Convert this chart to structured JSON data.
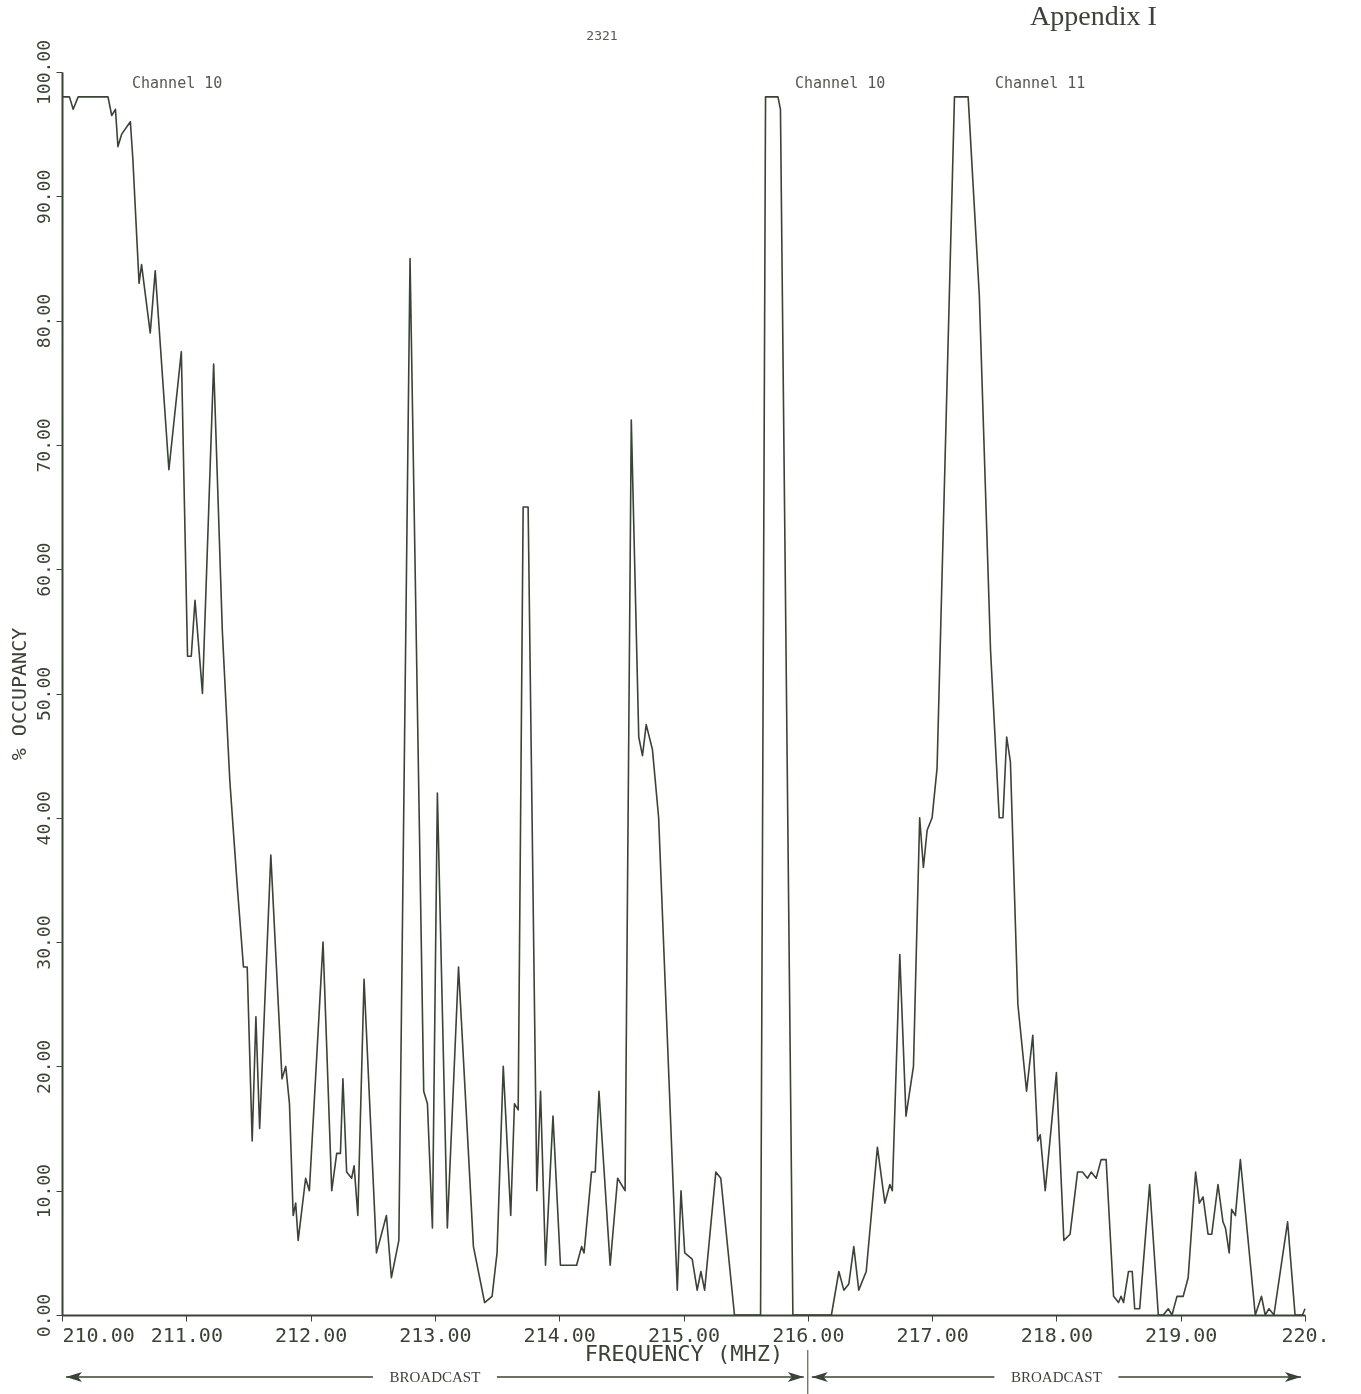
{
  "chart_data": {
    "type": "line",
    "title": "Appendix I",
    "xlabel": "FREQUENCY (MHZ)",
    "ylabel": "% OCCUPANCY",
    "color": "#3b4236",
    "line_style": "solid",
    "grid": false,
    "x": [
      210.0,
      210.06,
      210.09,
      210.13,
      210.37,
      210.4,
      210.43,
      210.45,
      210.48,
      210.55,
      210.57,
      210.62,
      210.64,
      210.71,
      210.75,
      210.86,
      210.96,
      211.01,
      211.04,
      211.07,
      211.13,
      211.22,
      211.29,
      211.35,
      211.41,
      211.46,
      211.49,
      211.53,
      211.56,
      211.59,
      211.68,
      211.77,
      211.8,
      211.83,
      211.86,
      211.88,
      211.9,
      211.96,
      211.99,
      212.1,
      212.17,
      212.21,
      212.24,
      212.26,
      212.29,
      212.33,
      212.35,
      212.38,
      212.43,
      212.53,
      212.61,
      212.65,
      212.71,
      212.8,
      212.91,
      212.94,
      212.98,
      213.02,
      213.1,
      213.19,
      213.31,
      213.4,
      213.46,
      213.5,
      213.55,
      213.61,
      213.64,
      213.67,
      213.71,
      213.75,
      213.82,
      213.85,
      213.89,
      213.95,
      214.01,
      214.14,
      214.18,
      214.2,
      214.26,
      214.29,
      214.32,
      214.41,
      214.47,
      214.53,
      214.58,
      214.64,
      214.67,
      214.7,
      214.75,
      214.8,
      214.95,
      214.98,
      215.01,
      215.07,
      215.11,
      215.14,
      215.17,
      215.26,
      215.3,
      215.41,
      215.62,
      215.66,
      215.76,
      215.78,
      215.88,
      216.19,
      216.25,
      216.29,
      216.33,
      216.37,
      216.41,
      216.47,
      216.56,
      216.62,
      216.66,
      216.68,
      216.74,
      216.79,
      216.85,
      216.9,
      216.93,
      216.96,
      217.0,
      217.04,
      217.18,
      217.29,
      217.38,
      217.47,
      217.54,
      217.57,
      217.6,
      217.63,
      217.69,
      217.76,
      217.81,
      217.85,
      217.87,
      217.91,
      218.0,
      218.06,
      218.11,
      218.17,
      218.21,
      218.25,
      218.28,
      218.32,
      218.36,
      218.4,
      218.46,
      218.5,
      218.52,
      218.54,
      218.58,
      218.61,
      218.63,
      218.67,
      218.75,
      218.82,
      218.86,
      218.9,
      218.93,
      218.97,
      219.02,
      219.06,
      219.12,
      219.15,
      219.18,
      219.22,
      219.25,
      219.3,
      219.34,
      219.36,
      219.39,
      219.41,
      219.44,
      219.48,
      219.6,
      219.65,
      219.68,
      219.71,
      219.75,
      219.86,
      219.92,
      219.98,
      220.0
    ],
    "values": [
      98,
      98,
      97,
      98,
      98,
      96.5,
      97,
      94,
      95,
      96,
      93,
      83,
      84.5,
      79,
      84,
      68,
      77.5,
      53,
      53,
      57.5,
      50,
      76.5,
      55,
      43,
      34.5,
      28,
      28,
      14,
      24,
      15,
      37,
      19,
      20,
      17,
      8,
      9,
      6,
      11,
      10,
      30,
      10,
      13,
      13,
      19,
      11.5,
      11,
      12,
      8,
      27,
      5,
      8,
      3,
      6,
      85,
      18,
      17,
      7,
      42,
      7,
      28,
      5.5,
      1,
      1.5,
      5,
      20,
      8,
      17,
      16.5,
      65,
      65,
      10,
      18,
      4,
      16,
      4,
      4,
      5.5,
      5,
      11.5,
      11.5,
      18,
      4,
      11,
      10,
      72,
      46.5,
      45,
      47.5,
      45.5,
      40,
      2,
      10,
      5,
      4.5,
      2,
      3.5,
      2,
      11.5,
      11,
      0,
      0,
      98,
      98,
      97,
      0,
      0,
      3.5,
      2,
      2.5,
      5.5,
      2,
      3.5,
      13.5,
      9,
      10.5,
      10,
      29,
      16,
      20,
      40,
      36,
      39,
      40,
      44,
      98,
      98,
      82,
      53.5,
      40,
      40,
      46.5,
      44.5,
      25,
      18,
      22.5,
      14,
      14.5,
      10,
      19.5,
      6,
      6.5,
      11.5,
      11.5,
      11,
      11.5,
      11,
      12.5,
      12.5,
      1.5,
      1,
      1.5,
      1,
      3.5,
      3.5,
      0.5,
      0.5,
      10.5,
      0,
      0,
      0.5,
      0,
      1.5,
      1.5,
      3,
      11.5,
      9,
      9.5,
      6.5,
      6.5,
      10.5,
      7.5,
      7,
      5,
      8.5,
      8,
      12.5,
      0,
      1.5,
      0,
      0.5,
      0,
      7.5,
      0,
      0,
      0.5
    ],
    "xlim": [
      210,
      220
    ],
    "xticks": [
      {
        "value": 210,
        "label": "210.00"
      },
      {
        "value": 211,
        "label": "211.00"
      },
      {
        "value": 212,
        "label": "212.00"
      },
      {
        "value": 213,
        "label": "213.00"
      },
      {
        "value": 214,
        "label": "214.00"
      },
      {
        "value": 215,
        "label": "215.00"
      },
      {
        "value": 216,
        "label": "216.00"
      },
      {
        "value": 217,
        "label": "217.00"
      },
      {
        "value": 218,
        "label": "218.00"
      },
      {
        "value": 219,
        "label": "219.00"
      },
      {
        "value": 220,
        "label": "220."
      }
    ],
    "ylim": [
      0,
      100
    ],
    "yticks": [
      {
        "value": 0,
        "label": "0.00"
      },
      {
        "value": 10,
        "label": "10.00"
      },
      {
        "value": 20,
        "label": "20.00"
      },
      {
        "value": 30,
        "label": "30.00"
      },
      {
        "value": 40,
        "label": "40.00"
      },
      {
        "value": 50,
        "label": "50.00"
      },
      {
        "value": 60,
        "label": "60.00"
      },
      {
        "value": 70,
        "label": "70.00"
      },
      {
        "value": 80,
        "label": "80.00"
      },
      {
        "value": 90,
        "label": "90.00"
      },
      {
        "value": 100,
        "label": "100.00"
      }
    ],
    "annotations": [
      "2321",
      "Channel 10",
      "Channel 10",
      "Channel 11",
      "BROADCAST",
      "BROADCAST"
    ]
  }
}
